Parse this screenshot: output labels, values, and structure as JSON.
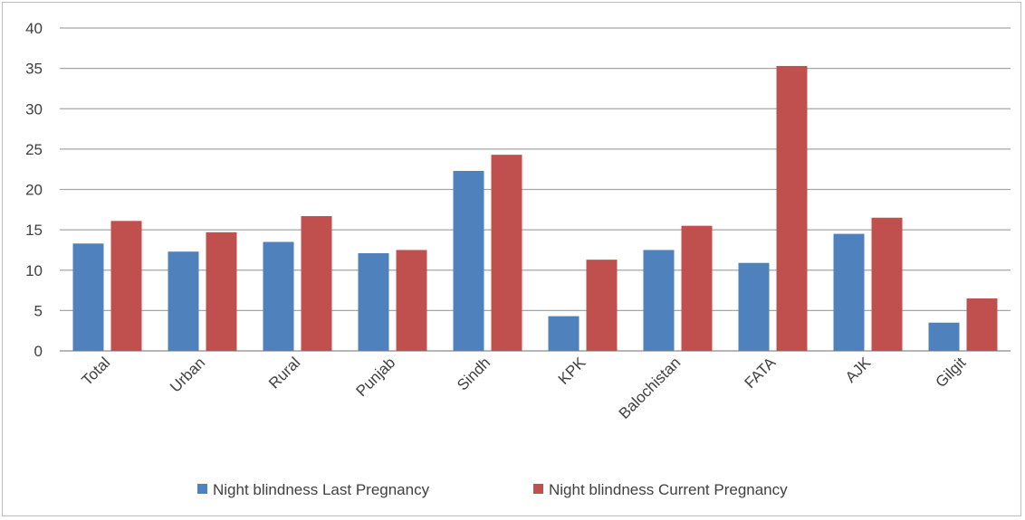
{
  "chart_data": {
    "type": "bar",
    "categories": [
      "Total",
      "Urban",
      "Rural",
      "Punjab",
      "Sindh",
      "KPK",
      "Balochistan",
      "FATA",
      "AJK",
      "Gilgit"
    ],
    "series": [
      {
        "name": "Night blindness Last Pregnancy",
        "color": "#4f81bd",
        "values": [
          13.3,
          12.3,
          13.5,
          12.1,
          22.3,
          4.3,
          12.5,
          10.9,
          14.5,
          3.5
        ]
      },
      {
        "name": "Night blindness Current Pregnancy",
        "color": "#c0504d",
        "values": [
          16.1,
          14.7,
          16.7,
          12.5,
          24.3,
          11.3,
          15.5,
          35.3,
          16.5,
          6.5
        ]
      }
    ],
    "ylim": [
      0,
      40
    ],
    "yticks": [
      "0",
      "5",
      "10",
      "15",
      "20",
      "25",
      "30",
      "35",
      "40"
    ],
    "grid": true,
    "legend": "bottom",
    "title": "",
    "xlabel": "",
    "ylabel": ""
  }
}
